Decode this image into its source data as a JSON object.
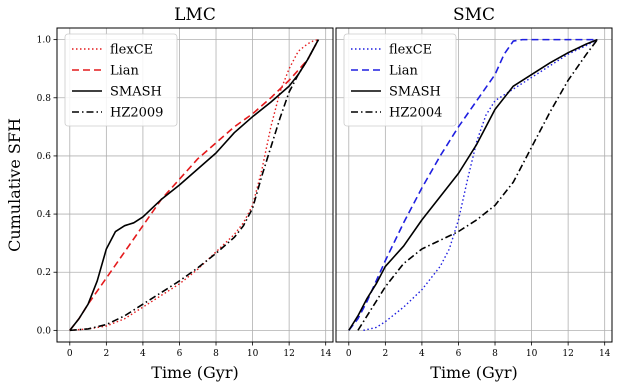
{
  "chart_data": [
    {
      "type": "line",
      "title": "LMC",
      "xlabel": "Time (Gyr)",
      "ylabel": "Cumulative SFH",
      "xlim": [
        -0.7,
        14.4
      ],
      "ylim": [
        -0.04,
        1.04
      ],
      "xticks": [
        "0",
        "2",
        "4",
        "6",
        "8",
        "10",
        "12",
        "14"
      ],
      "yticks": [
        "0.0",
        "0.2",
        "0.4",
        "0.6",
        "0.8",
        "1.0"
      ],
      "grid": true,
      "legend": "top-left",
      "series": [
        {
          "name": "flexCE",
          "color": "#e41a1c",
          "dash": "dotted",
          "x": [
            0,
            1,
            2,
            3,
            4,
            5,
            6,
            7,
            8,
            9,
            9.5,
            10,
            10.5,
            11,
            11.5,
            12,
            12.5,
            13,
            13.3,
            13.6
          ],
          "y": [
            0,
            0.005,
            0.015,
            0.04,
            0.08,
            0.12,
            0.16,
            0.21,
            0.27,
            0.33,
            0.37,
            0.43,
            0.55,
            0.7,
            0.82,
            0.9,
            0.96,
            0.985,
            0.995,
            1.0
          ]
        },
        {
          "name": "Lian",
          "color": "#e41a1c",
          "dash": "dashed",
          "x": [
            0,
            0.5,
            1,
            2,
            3,
            4,
            5,
            6,
            7,
            8,
            9,
            10,
            11,
            12,
            13,
            13.6
          ],
          "y": [
            0,
            0.04,
            0.09,
            0.18,
            0.27,
            0.36,
            0.45,
            0.52,
            0.59,
            0.645,
            0.7,
            0.745,
            0.8,
            0.86,
            0.93,
            1.0
          ]
        },
        {
          "name": "SMASH",
          "color": "#000000",
          "dash": "solid",
          "x": [
            0,
            0.5,
            1,
            1.5,
            2,
            2.5,
            3,
            3.5,
            4,
            5,
            6,
            7,
            8,
            9,
            10,
            11,
            12,
            12.5,
            13,
            13.6
          ],
          "y": [
            0,
            0.04,
            0.09,
            0.17,
            0.28,
            0.34,
            0.36,
            0.37,
            0.39,
            0.45,
            0.5,
            0.555,
            0.61,
            0.68,
            0.735,
            0.785,
            0.84,
            0.88,
            0.93,
            1.0
          ]
        },
        {
          "name": "HZ2009",
          "color": "#000000",
          "dash": "dashdot",
          "x": [
            0,
            1,
            2,
            3,
            4,
            5,
            6,
            7,
            8,
            9,
            9.5,
            10,
            10.5,
            11,
            11.5,
            12,
            12.5,
            13,
            13.6
          ],
          "y": [
            0,
            0.005,
            0.02,
            0.05,
            0.09,
            0.13,
            0.17,
            0.215,
            0.265,
            0.32,
            0.36,
            0.42,
            0.53,
            0.63,
            0.73,
            0.82,
            0.88,
            0.93,
            1.0
          ]
        }
      ]
    },
    {
      "type": "line",
      "title": "SMC",
      "xlabel": "Time (Gyr)",
      "ylabel": "",
      "xlim": [
        -0.7,
        14.4
      ],
      "ylim": [
        -0.04,
        1.04
      ],
      "xticks": [
        "0",
        "2",
        "4",
        "6",
        "8",
        "10",
        "12",
        "14"
      ],
      "yticks": [],
      "grid": true,
      "legend": "top-left",
      "series": [
        {
          "name": "flexCE",
          "color": "#1f1fe0",
          "dash": "dotted",
          "x": [
            0.8,
            1.5,
            2,
            3,
            4,
            5,
            5.5,
            6,
            6.5,
            7,
            7.5,
            8,
            9,
            10,
            11,
            12,
            13,
            13.6
          ],
          "y": [
            0,
            0.01,
            0.03,
            0.08,
            0.14,
            0.22,
            0.28,
            0.38,
            0.52,
            0.65,
            0.74,
            0.79,
            0.83,
            0.87,
            0.91,
            0.95,
            0.98,
            1.0
          ]
        },
        {
          "name": "Lian",
          "color": "#1f1fe0",
          "dash": "dashed",
          "x": [
            0,
            0.5,
            1,
            2,
            3,
            4,
            5,
            6,
            7,
            8,
            8.5,
            9,
            9.5,
            10,
            11,
            12,
            13,
            13.6
          ],
          "y": [
            0,
            0.04,
            0.1,
            0.24,
            0.37,
            0.49,
            0.6,
            0.7,
            0.79,
            0.88,
            0.95,
            0.995,
            1.0,
            1.0,
            1.0,
            1.0,
            1.0,
            1.0
          ]
        },
        {
          "name": "SMASH",
          "color": "#000000",
          "dash": "solid",
          "x": [
            0,
            0.5,
            1,
            1.5,
            2,
            2.5,
            3,
            4,
            5,
            6,
            7,
            8,
            9,
            10,
            11,
            12,
            13,
            13.6
          ],
          "y": [
            0,
            0.05,
            0.11,
            0.16,
            0.22,
            0.255,
            0.29,
            0.38,
            0.46,
            0.54,
            0.64,
            0.76,
            0.84,
            0.88,
            0.92,
            0.955,
            0.985,
            1.0
          ]
        },
        {
          "name": "HZ2004",
          "color": "#000000",
          "dash": "dashdot",
          "x": [
            0.5,
            1,
            2,
            3,
            4,
            5,
            6,
            7,
            8,
            9,
            10,
            11,
            12,
            13,
            13.6
          ],
          "y": [
            0,
            0.05,
            0.15,
            0.23,
            0.28,
            0.31,
            0.34,
            0.38,
            0.43,
            0.51,
            0.63,
            0.75,
            0.86,
            0.95,
            1.0
          ]
        }
      ]
    }
  ]
}
